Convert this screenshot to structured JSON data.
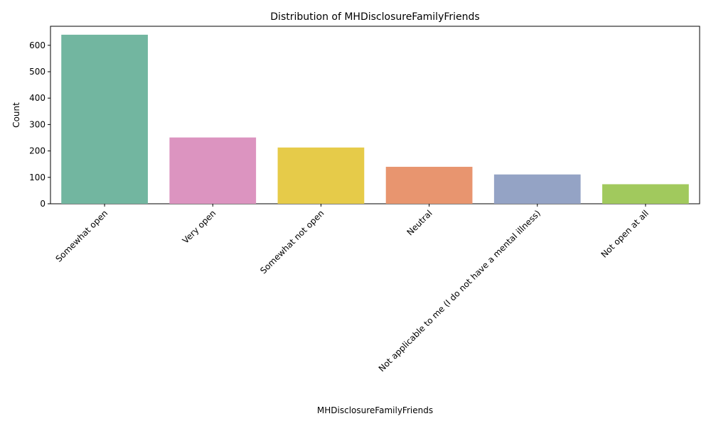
{
  "chart_data": {
    "type": "bar",
    "title": "Distribution of MHDisclosureFamilyFriends",
    "xlabel": "MHDisclosureFamilyFriends",
    "ylabel": "Count",
    "categories": [
      "Somewhat open",
      "Very open",
      "Somewhat not open",
      "Neutral",
      "Not applicable to me (I do not have a mental illness)",
      "Not open at all"
    ],
    "values": [
      640,
      251,
      213,
      140,
      111,
      74
    ],
    "colors": [
      "#72b6a0",
      "#dc94c0",
      "#e6cb49",
      "#e8956f",
      "#94a3c5",
      "#a1c95d"
    ],
    "yticks": [
      0,
      100,
      200,
      300,
      400,
      500,
      600
    ],
    "ylim": [
      0,
      672
    ],
    "grid": false,
    "legend": "none"
  }
}
